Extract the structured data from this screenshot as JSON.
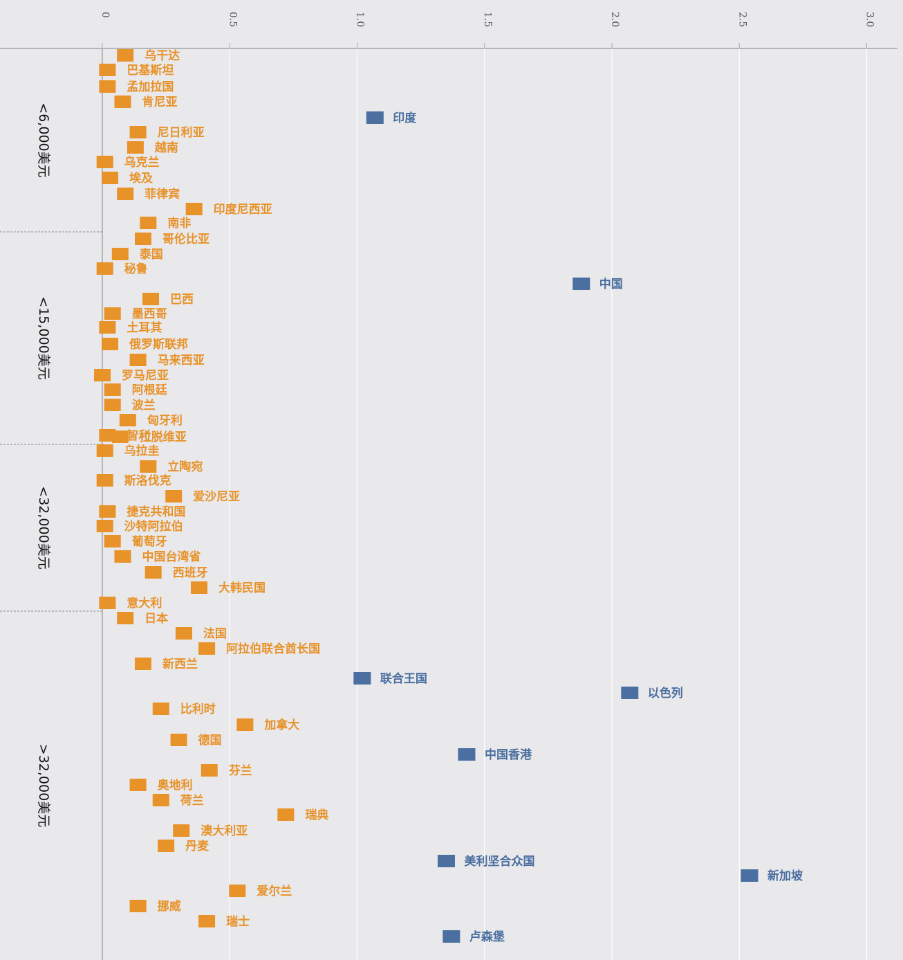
{
  "chart_data": {
    "type": "scatter",
    "x_axis": {
      "range": [
        0,
        3.1
      ],
      "ticks": [
        "0",
        "0.5",
        "1.0",
        "1.5",
        "2.0",
        "2.5",
        "3.0"
      ],
      "tick_values": [
        0,
        0.5,
        1.0,
        1.5,
        2.0,
        2.5,
        3.0
      ]
    },
    "colors": {
      "orange": "#e8922a",
      "blue": "#4a6fa0"
    },
    "groups": [
      {
        "label": "<6,000美元",
        "items": [
          {
            "name": "乌干达",
            "value": 0.09,
            "color": "orange"
          },
          {
            "name": "巴基斯坦",
            "value": 0.02,
            "color": "orange"
          },
          {
            "name": "孟加拉国",
            "value": 0.02,
            "color": "orange"
          },
          {
            "name": "肯尼亚",
            "value": 0.08,
            "color": "orange"
          },
          {
            "name": "印度",
            "value": 1.07,
            "color": "blue"
          },
          {
            "name": "尼日利亚",
            "value": 0.14,
            "color": "orange"
          },
          {
            "name": "越南",
            "value": 0.13,
            "color": "orange"
          },
          {
            "name": "乌克兰",
            "value": 0.01,
            "color": "orange"
          },
          {
            "name": "埃及",
            "value": 0.03,
            "color": "orange"
          },
          {
            "name": "菲律宾",
            "value": 0.09,
            "color": "orange"
          },
          {
            "name": "印度尼西亚",
            "value": 0.36,
            "color": "orange"
          },
          {
            "name": "南非",
            "value": 0.18,
            "color": "orange"
          },
          {
            "name": "哥伦比亚",
            "value": 0.16,
            "color": "orange"
          }
        ]
      },
      {
        "label": "<15,000美元",
        "items": [
          {
            "name": "泰国",
            "value": 0.07,
            "color": "orange"
          },
          {
            "name": "秘鲁",
            "value": 0.01,
            "color": "orange"
          },
          {
            "name": "中国",
            "value": 1.88,
            "color": "blue"
          },
          {
            "name": "巴西",
            "value": 0.19,
            "color": "orange"
          },
          {
            "name": "墨西哥",
            "value": 0.04,
            "color": "orange"
          },
          {
            "name": "土耳其",
            "value": 0.02,
            "color": "orange"
          },
          {
            "name": "俄罗斯联邦",
            "value": 0.03,
            "color": "orange"
          },
          {
            "name": "马来西亚",
            "value": 0.14,
            "color": "orange"
          },
          {
            "name": "罗马尼亚",
            "value": 0.0,
            "color": "orange"
          },
          {
            "name": "阿根廷",
            "value": 0.04,
            "color": "orange"
          },
          {
            "name": "波兰",
            "value": 0.04,
            "color": "orange"
          },
          {
            "name": "匈牙利",
            "value": 0.1,
            "color": "orange"
          },
          {
            "name": "智利",
            "value": 0.02,
            "color": "orange"
          }
        ]
      },
      {
        "label": "<32,000美元",
        "items": [
          {
            "name": "拉脱维亚",
            "value": 0.07,
            "color": "orange"
          },
          {
            "name": "乌拉圭",
            "value": 0.01,
            "color": "orange"
          },
          {
            "name": "立陶宛",
            "value": 0.18,
            "color": "orange"
          },
          {
            "name": "斯洛伐克",
            "value": 0.01,
            "color": "orange"
          },
          {
            "name": "爱沙尼亚",
            "value": 0.28,
            "color": "orange"
          },
          {
            "name": "捷克共和国",
            "value": 0.02,
            "color": "orange"
          },
          {
            "name": "沙特阿拉伯",
            "value": 0.01,
            "color": "orange"
          },
          {
            "name": "葡萄牙",
            "value": 0.04,
            "color": "orange"
          },
          {
            "name": "中国台湾省",
            "value": 0.08,
            "color": "orange"
          },
          {
            "name": "西班牙",
            "value": 0.2,
            "color": "orange"
          },
          {
            "name": "大韩民国",
            "value": 0.38,
            "color": "orange"
          }
        ]
      },
      {
        "label": ">32,000美元",
        "items": [
          {
            "name": "意大利",
            "value": 0.02,
            "color": "orange"
          },
          {
            "name": "日本",
            "value": 0.09,
            "color": "orange"
          },
          {
            "name": "法国",
            "value": 0.32,
            "color": "orange"
          },
          {
            "name": "阿拉伯联合酋长国",
            "value": 0.41,
            "color": "orange"
          },
          {
            "name": "新西兰",
            "value": 0.16,
            "color": "orange"
          },
          {
            "name": "联合王国",
            "value": 1.02,
            "color": "blue"
          },
          {
            "name": "以色列",
            "value": 2.07,
            "color": "blue"
          },
          {
            "name": "比利时",
            "value": 0.23,
            "color": "orange"
          },
          {
            "name": "加拿大",
            "value": 0.56,
            "color": "orange"
          },
          {
            "name": "德国",
            "value": 0.3,
            "color": "orange"
          },
          {
            "name": "中国香港",
            "value": 1.43,
            "color": "blue"
          },
          {
            "name": "芬兰",
            "value": 0.42,
            "color": "orange"
          },
          {
            "name": "奥地利",
            "value": 0.14,
            "color": "orange"
          },
          {
            "name": "荷兰",
            "value": 0.23,
            "color": "orange"
          },
          {
            "name": "瑞典",
            "value": 0.72,
            "color": "orange"
          },
          {
            "name": "澳大利亚",
            "value": 0.31,
            "color": "orange"
          },
          {
            "name": "丹麦",
            "value": 0.25,
            "color": "orange"
          },
          {
            "name": "美利坚合众国",
            "value": 1.35,
            "color": "blue"
          },
          {
            "name": "新加坡",
            "value": 2.54,
            "color": "blue"
          },
          {
            "name": "爱尔兰",
            "value": 0.53,
            "color": "orange"
          },
          {
            "name": "挪威",
            "value": 0.14,
            "color": "orange"
          },
          {
            "name": "瑞士",
            "value": 0.41,
            "color": "orange"
          },
          {
            "name": "卢森堡",
            "value": 1.37,
            "color": "blue"
          }
        ]
      }
    ]
  }
}
